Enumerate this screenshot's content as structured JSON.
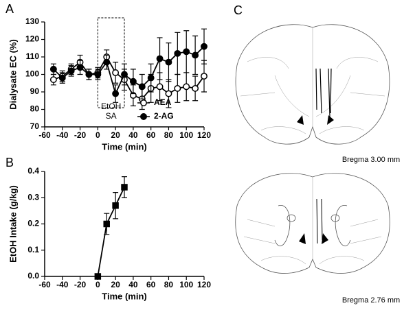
{
  "panels": [
    "A",
    "B",
    "C"
  ],
  "chart_data": [
    {
      "type": "line",
      "y_label": "Dialysate EC (%)",
      "x_label": "Time (min)",
      "annotation": [
        "EtOH",
        "SA"
      ],
      "highlight_x": [
        0,
        30
      ],
      "x": [
        -50,
        -40,
        -30,
        -20,
        -10,
        0,
        10,
        20,
        30,
        40,
        50,
        60,
        70,
        80,
        90,
        100,
        110,
        120
      ],
      "series": [
        {
          "name": "AEA",
          "color": "#000000",
          "marker": "circle-open",
          "values": [
            97,
            99,
            103,
            107,
            100,
            101,
            110,
            101,
            97,
            88,
            86,
            92,
            93,
            89,
            92,
            93,
            92,
            99
          ],
          "errors": [
            3,
            3,
            3,
            4,
            3,
            3,
            4,
            6,
            6,
            6,
            6,
            8,
            8,
            8,
            8,
            8,
            7,
            9
          ]
        },
        {
          "name": "2-AG",
          "color": "#000000",
          "marker": "circle",
          "values": [
            103,
            98,
            102,
            104,
            100,
            100,
            107,
            89,
            100,
            96,
            93,
            98,
            109,
            107,
            112,
            113,
            111,
            116
          ],
          "errors": [
            3,
            3,
            3,
            4,
            3,
            3,
            4,
            5,
            6,
            7,
            7,
            8,
            12,
            11,
            12,
            12,
            11,
            10
          ]
        }
      ],
      "xlim": [
        -60,
        120
      ],
      "xticks": [
        -60,
        -40,
        -20,
        0,
        20,
        40,
        60,
        80,
        100,
        120
      ],
      "ylim": [
        70,
        130
      ],
      "yticks": [
        70,
        80,
        90,
        100,
        110,
        120,
        130
      ],
      "legend": "lower-right"
    },
    {
      "type": "line",
      "y_label": "EtOH Intake (g/kg)",
      "x_label": "Time (min)",
      "x": [
        0,
        10,
        20,
        30
      ],
      "series": [
        {
          "color": "#000000",
          "marker": "square",
          "values": [
            0,
            0.2,
            0.27,
            0.34
          ],
          "errors": [
            0,
            0.04,
            0.05,
            0.04
          ]
        }
      ],
      "xlim": [
        -60,
        120
      ],
      "xticks": [
        -60,
        -40,
        -20,
        0,
        20,
        40,
        60,
        80,
        100,
        120
      ],
      "ylim": [
        0,
        0.4
      ],
      "yticks": [
        {
          "value": 0,
          "label": "0.0"
        },
        0.1,
        0.2,
        0.3,
        0.4
      ]
    }
  ],
  "diagram": {
    "captions": [
      "Bregma 3.00 mm",
      "Bregma 2.76 mm"
    ]
  }
}
